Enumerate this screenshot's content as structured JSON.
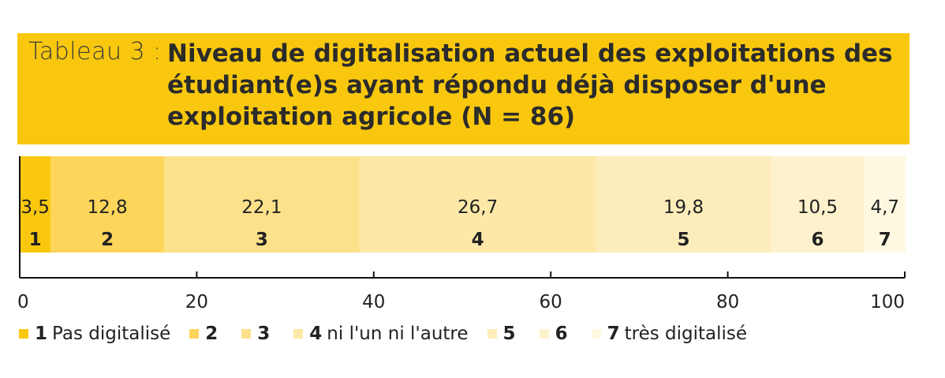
{
  "title": {
    "prefix": "Tableau 3 :",
    "text": "Niveau de digitalisation actuel des exploitations des étudiant(e)s ayant répondu déjà disposer d'une exploitation agricole (N = 86)"
  },
  "chart_data": {
    "type": "bar",
    "orientation": "horizontal-stacked",
    "xlim": [
      0,
      100
    ],
    "xticks": [
      "0",
      "20",
      "40",
      "60",
      "80",
      "100"
    ],
    "grid": false,
    "legend_position": "bottom",
    "series": [
      {
        "category": "1",
        "value": 3.5,
        "label": "3,5",
        "color": "#f9c80e"
      },
      {
        "category": "2",
        "value": 12.8,
        "label": "12,8",
        "color": "#fcd55a"
      },
      {
        "category": "3",
        "value": 22.1,
        "label": "22,1",
        "color": "#fde08a"
      },
      {
        "category": "4",
        "value": 26.7,
        "label": "26,7",
        "color": "#fde8a8"
      },
      {
        "category": "5",
        "value": 19.8,
        "label": "19,8",
        "color": "#fdedbb"
      },
      {
        "category": "6",
        "value": 10.5,
        "label": "10,5",
        "color": "#fef2cd"
      },
      {
        "category": "7",
        "value": 4.7,
        "label": "4,7",
        "color": "#fff8e1"
      }
    ],
    "legend": [
      {
        "num": "1",
        "text": "Pas digitalisé"
      },
      {
        "num": "2",
        "text": ""
      },
      {
        "num": "3",
        "text": ""
      },
      {
        "num": "4",
        "text": "ni l'un ni l'autre"
      },
      {
        "num": "5",
        "text": ""
      },
      {
        "num": "6",
        "text": ""
      },
      {
        "num": "7",
        "text": "très digitalisé"
      }
    ]
  }
}
